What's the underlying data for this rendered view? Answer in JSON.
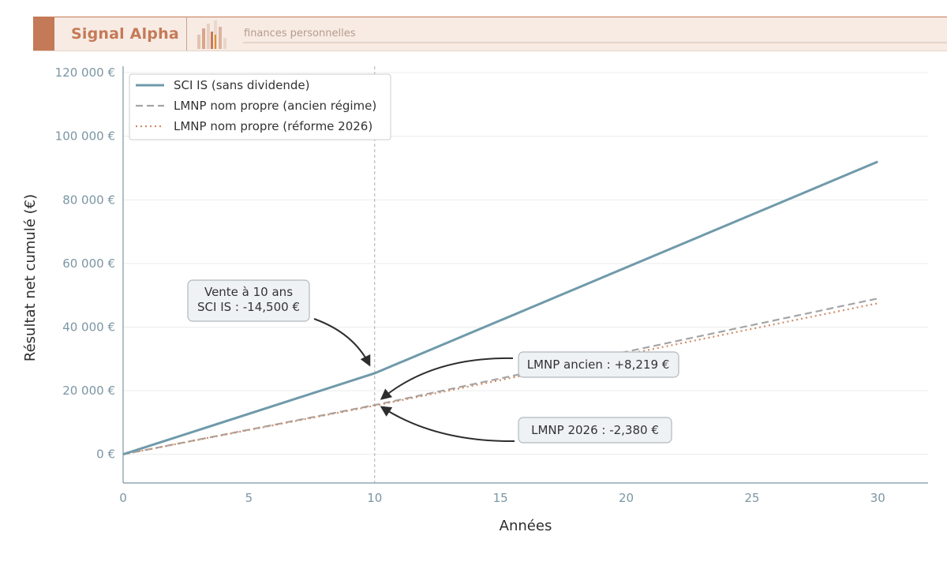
{
  "header": {
    "brand": "Signal Alpha",
    "tagline": "finances personnelles"
  },
  "chart_data": {
    "type": "line",
    "xlabel": "Années",
    "ylabel": "Résultat net cumulé (€)",
    "xlim": [
      0,
      32
    ],
    "ylim": [
      -9000,
      122000
    ],
    "xticks": [
      0,
      5,
      10,
      15,
      20,
      25,
      30
    ],
    "yticks": [
      0,
      20000,
      40000,
      60000,
      80000,
      100000,
      120000
    ],
    "ytick_labels": [
      "0 €",
      "20 000 €",
      "40 000 €",
      "60 000 €",
      "80 000 €",
      "100 000 €",
      "120 000 €"
    ],
    "grid": "horizontal",
    "legend_position": "top-left",
    "vline_x": 10,
    "series": [
      {
        "name": "SCI IS (sans dividende)",
        "style": "solid",
        "color": "#6f9aaa",
        "x": [
          0,
          10,
          30
        ],
        "y": [
          0,
          25500,
          92000
        ]
      },
      {
        "name": "LMNP nom propre (ancien régime)",
        "style": "dashed",
        "color": "#a5a5a5",
        "x": [
          0,
          10,
          30
        ],
        "y": [
          0,
          15500,
          49000
        ]
      },
      {
        "name": "LMNP nom propre (réforme 2026)",
        "style": "dotted",
        "color": "#d08c68",
        "x": [
          0,
          10,
          30
        ],
        "y": [
          0,
          15300,
          47500
        ]
      }
    ],
    "annotations": [
      {
        "lines": [
          "Vente à 10 ans",
          "SCI IS : -14,500 €"
        ],
        "target": [
          10,
          25500
        ]
      },
      {
        "lines": [
          "LMNP ancien : +8,219 €"
        ],
        "target": [
          10,
          16000
        ]
      },
      {
        "lines": [
          "LMNP 2026 : -2,380 €"
        ],
        "target": [
          10,
          14500
        ]
      }
    ]
  },
  "colors": {
    "axis": "#7b96a4",
    "grid": "#ececec",
    "vline": "#bbbbbb",
    "arrow": "#2d2d2d",
    "annotation_fill": "#eef2f5",
    "annotation_stroke": "#b0b8be"
  }
}
